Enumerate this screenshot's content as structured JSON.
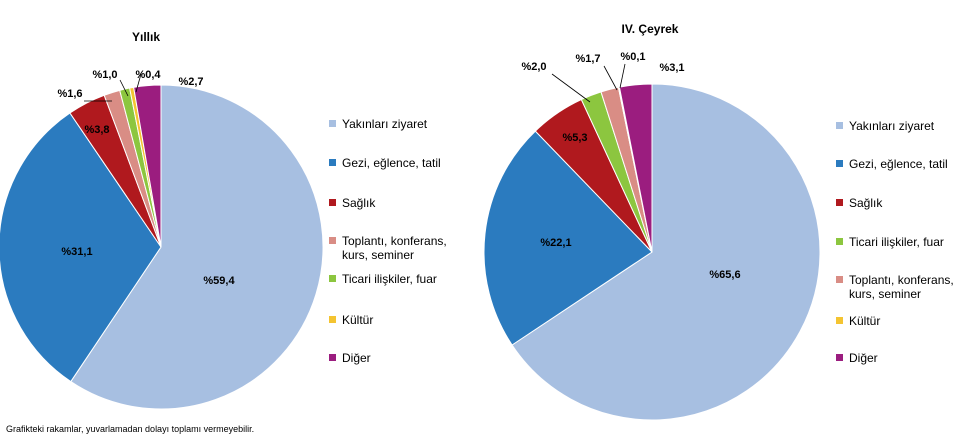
{
  "colors": {
    "Yakınları ziyaret": "#a7bfe1",
    "Gezi, eğlence, tatil": "#2b7bbf",
    "Sağlık": "#b0191e",
    "Toplantı, konferans, kurs, seminer": "#d98d85",
    "Ticari ilişkiler, fuar": "#8cc63f",
    "Kültür": "#f4c431",
    "Diğer": "#9b1d7f"
  },
  "chart_data": [
    {
      "type": "pie",
      "title": "Yıllık",
      "slices": [
        {
          "category": "Yakınları ziyaret",
          "value": 59.4,
          "label": "%59,4"
        },
        {
          "category": "Gezi, eğlence, tatil",
          "value": 31.1,
          "label": "%31,1"
        },
        {
          "category": "Sağlık",
          "value": 3.8,
          "label": "%3,8"
        },
        {
          "category": "Toplantı, konferans, kurs, seminer",
          "value": 1.6,
          "label": "%1,6"
        },
        {
          "category": "Ticari ilişkiler, fuar",
          "value": 1.0,
          "label": "%1,0"
        },
        {
          "category": "Kültür",
          "value": 0.4,
          "label": "%0,4"
        },
        {
          "category": "Diğer",
          "value": 2.7,
          "label": "%2,7"
        }
      ],
      "legend": {
        "placement": "right",
        "items": [
          "Yakınları ziyaret",
          "Gezi, eğlence, tatil",
          "Sağlık",
          [
            "Toplantı, konferans,",
            "kurs, seminer"
          ],
          "Ticari ilişkiler, fuar",
          "Kültür",
          "Diğer"
        ],
        "item_categories": [
          "Yakınları ziyaret",
          "Gezi, eğlence, tatil",
          "Sağlık",
          "Toplantı, konferans, kurs, seminer",
          "Ticari ilişkiler, fuar",
          "Kültür",
          "Diğer"
        ]
      }
    },
    {
      "type": "pie",
      "title": "IV. Çeyrek",
      "slices": [
        {
          "category": "Yakınları ziyaret",
          "value": 65.6,
          "label": "%65,6"
        },
        {
          "category": "Gezi, eğlence, tatil",
          "value": 22.1,
          "label": "%22,1"
        },
        {
          "category": "Sağlık",
          "value": 5.3,
          "label": "%5,3"
        },
        {
          "category": "Ticari ilişkiler, fuar",
          "value": 2.0,
          "label": "%2,0"
        },
        {
          "category": "Toplantı, konferans, kurs, seminer",
          "value": 1.7,
          "label": "%1,7"
        },
        {
          "category": "Kültür",
          "value": 0.1,
          "label": "%0,1"
        },
        {
          "category": "Diğer",
          "value": 3.1,
          "label": "%3,1"
        }
      ],
      "legend": {
        "placement": "right",
        "items": [
          "Yakınları ziyaret",
          "Gezi, eğlence, tatil",
          "Sağlık",
          "Ticari ilişkiler, fuar",
          [
            "Toplantı, konferans,",
            "kurs, seminer"
          ],
          "Kültür",
          "Diğer"
        ],
        "item_categories": [
          "Yakınları ziyaret",
          "Gezi, eğlence, tatil",
          "Sağlık",
          "Ticari ilişkiler, fuar",
          "Toplantı, konferans, kurs, seminer",
          "Kültür",
          "Diğer"
        ]
      }
    }
  ],
  "footnote": "Grafikteki rakamlar, yuvarlamadan dolayı toplamı vermeyebilir."
}
